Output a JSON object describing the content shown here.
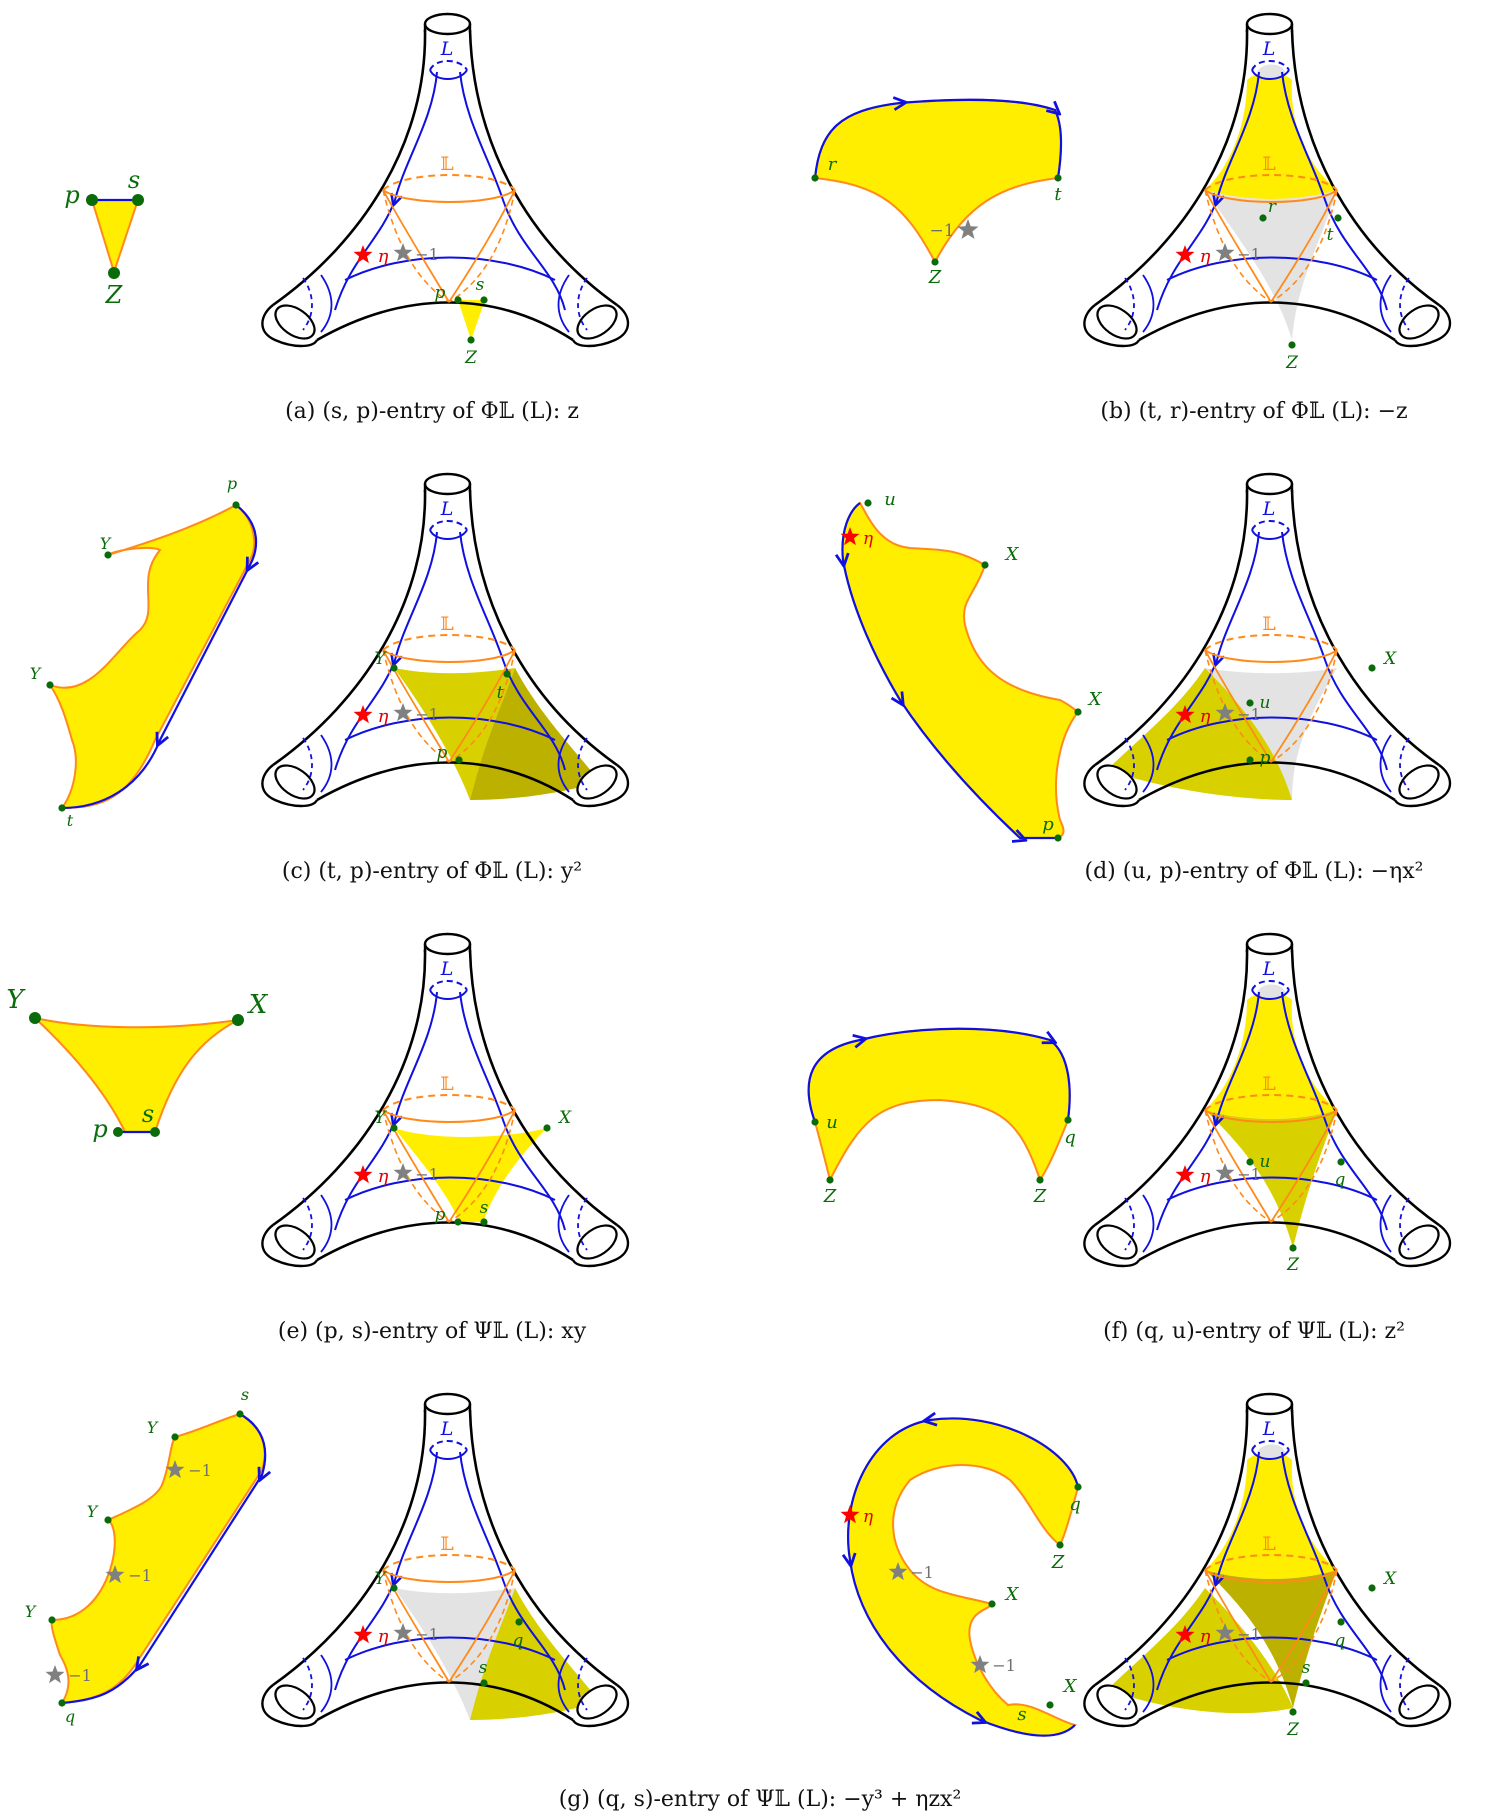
{
  "colors": {
    "fill": "#ffee00",
    "fill_dark": "#d9d000",
    "fill_darker": "#bdb100",
    "grey_fill": "#e3e3e3",
    "blue": "#1010e0",
    "orange": "#ff8a1a",
    "green": "#0a6b0a",
    "red_star": "#ff0000",
    "grey_star": "#808080",
    "outline": "#000000"
  },
  "labels": {
    "L_top": "L",
    "L_orange": "𝕃",
    "eta": "η",
    "minus_one": "−1"
  },
  "captions": [
    "(a) (s, p)-entry of Φ𝕃 (L): z",
    "(b) (t, r)-entry of Φ𝕃 (L): −z",
    "(c) (t, p)-entry of Φ𝕃 (L): y²",
    "(d) (u, p)-entry of Φ𝕃 (L): −ηx²",
    "(e) (p, s)-entry of Ψ𝕃 (L): xy",
    "(f) (q, u)-entry of Ψ𝕃 (L): z²",
    "(g) (q, s)-entry of Ψ𝕃 (L): −y³ + ηzx²"
  ],
  "panels": [
    {
      "id": "a",
      "points": [
        "p",
        "s",
        "Z"
      ],
      "stars": [
        "η"
      ],
      "piece": {
        "kind": "small-triangle",
        "labels": [
          "p",
          "s",
          "Z"
        ]
      }
    },
    {
      "id": "b",
      "points": [
        "r",
        "t",
        "Z"
      ],
      "stars": [
        "η",
        "−1"
      ],
      "piece": {
        "kind": "cap",
        "labels": [
          "r",
          "t",
          "Z",
          "−1"
        ]
      }
    },
    {
      "id": "c",
      "points": [
        "Y",
        "t",
        "p"
      ],
      "stars": [
        "η",
        "−1"
      ],
      "piece": {
        "kind": "strip",
        "labels": [
          "p",
          "Y",
          "Y",
          "t"
        ]
      }
    },
    {
      "id": "d",
      "points": [
        "X",
        "u",
        "p"
      ],
      "stars": [
        "η",
        "−1"
      ],
      "piece": {
        "kind": "strip",
        "labels": [
          "u",
          "η",
          "X",
          "X",
          "p"
        ]
      }
    },
    {
      "id": "e",
      "points": [
        "Y",
        "X",
        "p",
        "s"
      ],
      "stars": [
        "η",
        "−1"
      ],
      "piece": {
        "kind": "triangle",
        "labels": [
          "Y",
          "X",
          "p",
          "s"
        ]
      }
    },
    {
      "id": "f",
      "points": [
        "u",
        "q",
        "Z"
      ],
      "stars": [
        "η",
        "−1"
      ],
      "piece": {
        "kind": "arch",
        "labels": [
          "u",
          "q",
          "Z",
          "Z"
        ]
      }
    },
    {
      "id": "g1",
      "points": [
        "Y",
        "q",
        "s"
      ],
      "stars": [
        "η",
        "−1"
      ],
      "piece": {
        "kind": "strip",
        "labels": [
          "s",
          "Y",
          "−1",
          "Y",
          "−1",
          "Y",
          "−1",
          "q"
        ]
      }
    },
    {
      "id": "g2",
      "points": [
        "X",
        "q",
        "s",
        "Z"
      ],
      "stars": [
        "η",
        "−1"
      ],
      "piece": {
        "kind": "hook",
        "labels": [
          "q",
          "Z",
          "η",
          "−1",
          "X",
          "−1",
          "X",
          "s"
        ]
      }
    }
  ]
}
